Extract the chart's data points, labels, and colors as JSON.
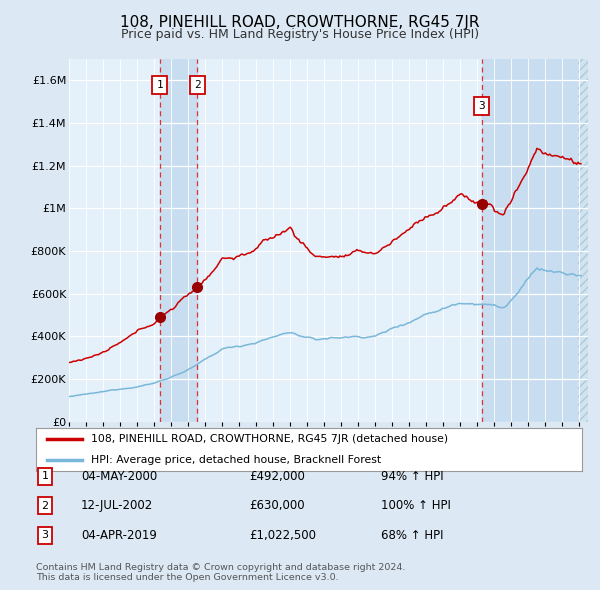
{
  "title": "108, PINEHILL ROAD, CROWTHORNE, RG45 7JR",
  "subtitle": "Price paid vs. HM Land Registry's House Price Index (HPI)",
  "sale_dates_dec": [
    2000.3333,
    2002.5417,
    2019.25
  ],
  "sale_prices": [
    492000,
    630000,
    1022500
  ],
  "sale_labels": [
    "1",
    "2",
    "3"
  ],
  "sale_info": [
    {
      "num": "1",
      "date": "04-MAY-2000",
      "price": "£492,000",
      "hpi": "94% ↑ HPI"
    },
    {
      "num": "2",
      "date": "12-JUL-2002",
      "price": "£630,000",
      "hpi": "100% ↑ HPI"
    },
    {
      "num": "3",
      "date": "04-APR-2019",
      "price": "£1,022,500",
      "hpi": "68% ↑ HPI"
    }
  ],
  "hpi_line_color": "#7ab8d9",
  "price_line_color": "#cc0000",
  "sale_marker_color": "#990000",
  "bg_color": "#dce9f5",
  "plot_bg_color": "#e4f0fa",
  "grid_color": "#ffffff",
  "shade_color": "#c8ddf0",
  "ylabel_ticks": [
    "£0",
    "£200K",
    "£400K",
    "£600K",
    "£800K",
    "£1M",
    "£1.2M",
    "£1.4M",
    "£1.6M"
  ],
  "ylabel_values": [
    0,
    200000,
    400000,
    600000,
    800000,
    1000000,
    1200000,
    1400000,
    1600000
  ],
  "ylim": [
    0,
    1700000
  ],
  "xlim_start": 1995.0,
  "xlim_end": 2025.5,
  "hatch_start": 2024.917,
  "legend_label_red": "108, PINEHILL ROAD, CROWTHORNE, RG45 7JR (detached house)",
  "legend_label_blue": "HPI: Average price, detached house, Bracknell Forest",
  "footnote": "Contains HM Land Registry data © Crown copyright and database right 2024.\nThis data is licensed under the Open Government Licence v3.0."
}
